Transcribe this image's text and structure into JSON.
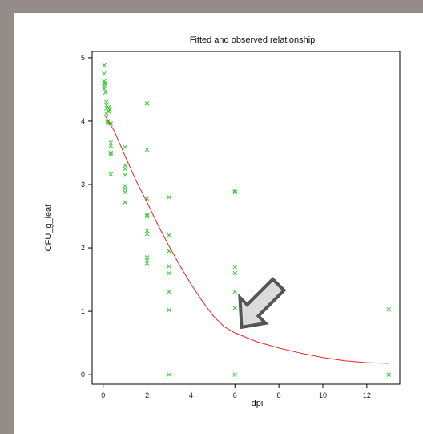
{
  "chart_data": {
    "type": "scatter",
    "title": "Fitted and observed relationship",
    "xlabel": "dpi",
    "ylabel": "CFU_g_leaf",
    "xlim": [
      -0.5,
      13.5
    ],
    "ylim": [
      -0.15,
      5.1
    ],
    "xticks": [
      0,
      2,
      4,
      6,
      8,
      10,
      12
    ],
    "yticks": [
      0,
      1,
      2,
      3,
      4,
      5
    ],
    "grid": false,
    "colors": {
      "observed": "#33cc33",
      "fitted": "#ee2222",
      "arrow_fill": "#dcdcdc",
      "arrow_stroke": "#555555"
    },
    "series": [
      {
        "type": "scatter",
        "marker": "x",
        "points": [
          [
            0.05,
            4.88
          ],
          [
            0.05,
            4.75
          ],
          [
            0.05,
            4.63
          ],
          [
            0.05,
            4.59
          ],
          [
            0.05,
            4.55
          ],
          [
            0.05,
            4.51
          ],
          [
            0.1,
            4.6
          ],
          [
            0.1,
            4.45
          ],
          [
            0.15,
            4.3
          ],
          [
            0.15,
            4.25
          ],
          [
            0.15,
            4.2
          ],
          [
            0.15,
            4.12
          ],
          [
            0.25,
            4.22
          ],
          [
            0.25,
            4.15
          ],
          [
            0.3,
            4.18
          ],
          [
            0.2,
            4.0
          ],
          [
            0.2,
            3.98
          ],
          [
            0.3,
            3.97
          ],
          [
            0.35,
            3.96
          ],
          [
            0.35,
            3.66
          ],
          [
            0.35,
            3.61
          ],
          [
            0.35,
            3.5
          ],
          [
            0.35,
            3.48
          ],
          [
            0.35,
            3.16
          ],
          [
            1,
            3.59
          ],
          [
            1,
            3.3
          ],
          [
            1,
            3.25
          ],
          [
            1,
            3.15
          ],
          [
            1,
            2.98
          ],
          [
            1,
            2.93
          ],
          [
            1,
            2.88
          ],
          [
            1,
            2.72
          ],
          [
            2,
            4.28
          ],
          [
            2,
            3.55
          ],
          [
            2,
            2.78
          ],
          [
            2,
            2.52
          ],
          [
            2,
            2.5
          ],
          [
            2,
            2.27
          ],
          [
            2,
            2.22
          ],
          [
            2,
            1.85
          ],
          [
            2,
            1.8
          ],
          [
            2,
            1.76
          ],
          [
            3,
            2.8
          ],
          [
            3,
            2.2
          ],
          [
            3,
            1.95
          ],
          [
            3,
            1.71
          ],
          [
            3,
            1.6
          ],
          [
            3,
            1.31
          ],
          [
            3,
            1.02
          ],
          [
            3,
            0.0
          ],
          [
            6,
            2.9
          ],
          [
            6,
            2.88
          ],
          [
            6,
            1.7
          ],
          [
            6,
            1.6
          ],
          [
            6,
            1.31
          ],
          [
            6,
            1.05
          ],
          [
            6,
            0.0
          ],
          [
            13,
            1.03
          ],
          [
            13,
            0.0
          ]
        ]
      },
      {
        "type": "line",
        "points": [
          [
            0.1,
            4.08
          ],
          [
            0.5,
            3.85
          ],
          [
            1,
            3.45
          ],
          [
            1.5,
            3.06
          ],
          [
            2,
            2.72
          ],
          [
            2.5,
            2.36
          ],
          [
            3,
            2.03
          ],
          [
            3.5,
            1.72
          ],
          [
            4,
            1.43
          ],
          [
            4.5,
            1.17
          ],
          [
            5,
            0.93
          ],
          [
            5.5,
            0.76
          ],
          [
            6,
            0.66
          ],
          [
            7,
            0.52
          ],
          [
            8,
            0.42
          ],
          [
            9,
            0.34
          ],
          [
            10,
            0.27
          ],
          [
            11,
            0.22
          ],
          [
            12,
            0.19
          ],
          [
            13,
            0.18
          ]
        ]
      }
    ],
    "annotations": [
      {
        "type": "arrow",
        "direction": "down-left",
        "points_to": [
          6.3,
          0.75
        ]
      }
    ]
  }
}
